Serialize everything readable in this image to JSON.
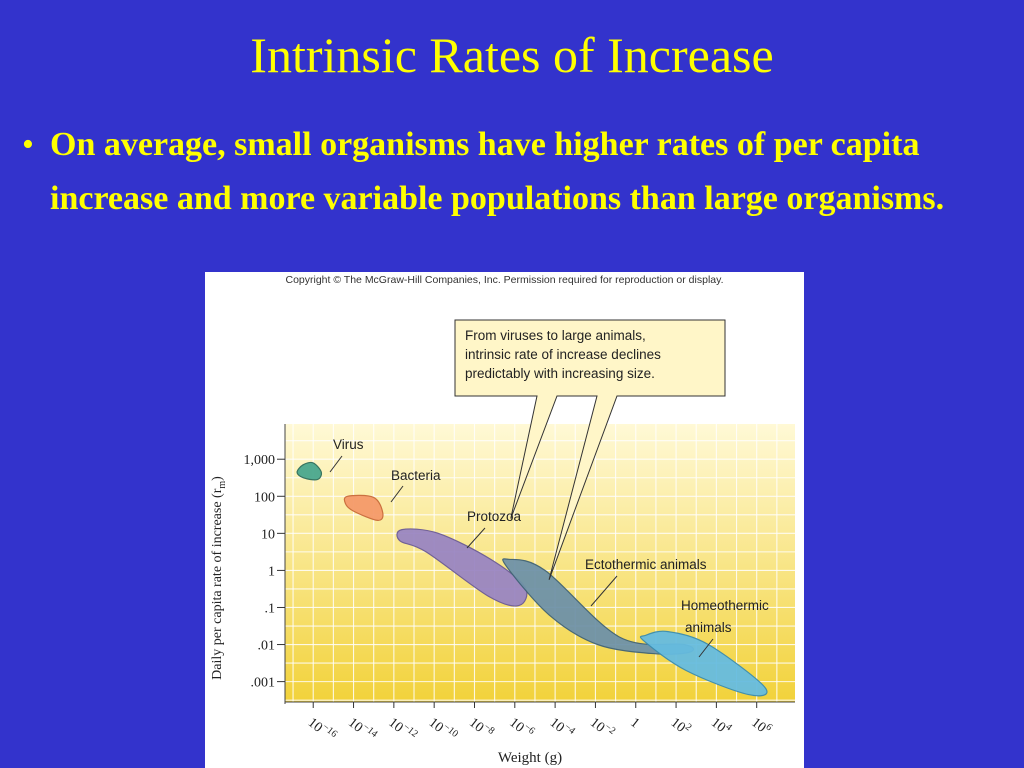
{
  "slide": {
    "title": "Intrinsic Rates of Increase",
    "bullet": "On average, small organisms have higher rates of per capita increase and more variable populations than large organisms."
  },
  "figure": {
    "copyright": "Copyright © The McGraw-Hill Companies, Inc. Permission required for reproduction or display.",
    "callout": [
      "From viruses to large animals,",
      "intrinsic rate of increase declines",
      "predictably with increasing size."
    ]
  },
  "chart_data": {
    "type": "scatter",
    "xlabel": "Weight (g)",
    "ylabel": "Daily per capita rate of increase (r",
    "ylabel_sub": "m",
    "ylabel_end": ")",
    "x_scale": "log",
    "y_scale": "log",
    "x_ticks": [
      {
        "value": 1e-16,
        "base": "10",
        "exp": "−16"
      },
      {
        "value": 1e-14,
        "base": "10",
        "exp": "−14"
      },
      {
        "value": 1e-12,
        "base": "10",
        "exp": "−12"
      },
      {
        "value": 1e-10,
        "base": "10",
        "exp": "−10"
      },
      {
        "value": 1e-08,
        "base": "10",
        "exp": "−8"
      },
      {
        "value": 1e-06,
        "base": "10",
        "exp": "−6"
      },
      {
        "value": 0.0001,
        "base": "10",
        "exp": "−4"
      },
      {
        "value": 0.01,
        "base": "10",
        "exp": "−2"
      },
      {
        "value": 1,
        "base": "1",
        "exp": ""
      },
      {
        "value": 100.0,
        "base": "10",
        "exp": "2"
      },
      {
        "value": 10000.0,
        "base": "10",
        "exp": "4"
      },
      {
        "value": 1000000.0,
        "base": "10",
        "exp": "6"
      }
    ],
    "y_ticks": [
      {
        "value": 1000,
        "label": "1,000"
      },
      {
        "value": 100,
        "label": "100"
      },
      {
        "value": 10,
        "label": "10"
      },
      {
        "value": 1,
        "label": "1"
      },
      {
        "value": 0.1,
        "label": ".1"
      },
      {
        "value": 0.01,
        "label": ".01"
      },
      {
        "value": 0.001,
        "label": ".001"
      }
    ],
    "grid": true,
    "background": [
      "#fff9d6",
      "#f2d23a"
    ],
    "series": [
      {
        "name": "Virus",
        "color": "#4aa88e",
        "outline": "#2f6e5b",
        "shape": [
          [
            -16.5,
            2.85
          ],
          [
            -16.0,
            2.9
          ],
          [
            -15.6,
            2.65
          ],
          [
            -15.8,
            2.45
          ],
          [
            -16.5,
            2.5
          ],
          [
            -16.8,
            2.65
          ]
        ]
      },
      {
        "name": "Bacteria",
        "color": "#f59a6a",
        "outline": "#c86a3a",
        "shape": [
          [
            -14.3,
            2.0
          ],
          [
            -13.0,
            1.97
          ],
          [
            -12.55,
            1.55
          ],
          [
            -12.8,
            1.35
          ],
          [
            -14.0,
            1.6
          ],
          [
            -14.4,
            1.8
          ]
        ]
      },
      {
        "name": "Protozoa",
        "color": "#9a86c2",
        "outline": "#6a5a96",
        "shape": [
          [
            -11.6,
            1.1
          ],
          [
            -9.8,
            1.0
          ],
          [
            -7.2,
            0.3
          ],
          [
            -5.5,
            -0.45
          ],
          [
            -5.8,
            -0.95
          ],
          [
            -7.3,
            -0.7
          ],
          [
            -10.4,
            0.5
          ],
          [
            -11.7,
            0.8
          ]
        ]
      },
      {
        "name": "Ectothermic animals",
        "color": "#6f92a8",
        "outline": "#3f6276",
        "shape": [
          [
            -6.3,
            0.3
          ],
          [
            -4.5,
            0.0
          ],
          [
            -0.8,
            -1.8
          ],
          [
            2.4,
            -2.0
          ],
          [
            2.7,
            -2.2
          ],
          [
            1.0,
            -2.25
          ],
          [
            -1.9,
            -2.0
          ],
          [
            -4.3,
            -1.2
          ],
          [
            -6.4,
            0.1
          ]
        ]
      },
      {
        "name": "Homeothermic animals",
        "color": "#66bce0",
        "outline": "#3a8cb0",
        "shape": [
          [
            0.5,
            -1.75
          ],
          [
            1.6,
            -1.65
          ],
          [
            3.6,
            -2.0
          ],
          [
            6.4,
            -3.15
          ],
          [
            5.6,
            -3.35
          ],
          [
            2.5,
            -2.7
          ],
          [
            0.4,
            -1.9
          ]
        ]
      }
    ],
    "labels": [
      {
        "text": "Virus",
        "series": 0
      },
      {
        "text": "Bacteria",
        "series": 1
      },
      {
        "text": "Protozoa",
        "series": 2
      },
      {
        "text": "Ectothermic animals",
        "series": 3
      },
      {
        "text": "Homeothermic",
        "series": 4
      },
      {
        "text": "animals",
        "series": 4
      }
    ]
  }
}
